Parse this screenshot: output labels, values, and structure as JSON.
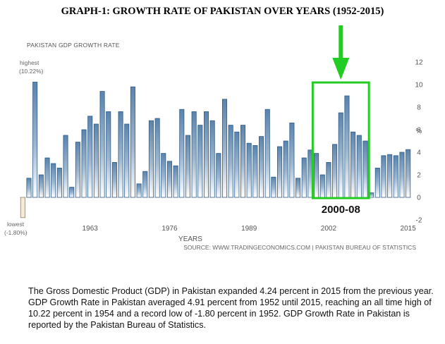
{
  "page": {
    "title": "GRAPH-1: GROWTH RATE OF PAKISTAN OVER YEARS (1952-2015)",
    "caption": "The Gross Domestic Product (GDP) in Pakistan expanded 4.24 percent in 2015 from the previous year. GDP Growth Rate in Pakistan averaged 4.91 percent from 1952 until 2015, reaching an all time high of 10.22 percent in 1954 and a record low of -1.80 percent in 1952. GDP Growth Rate in Pakistan is reported by the Pakistan Bureau of Statistics."
  },
  "chart_data": {
    "type": "bar",
    "title": "PAKISTAN GDP GROWTH RATE",
    "xlabel": "YEARS",
    "ylabel": "%",
    "source": "SOURCE: WWW.TRADINGECONOMICS.COM | PAKISTAN BUREAU OF STATISTICS",
    "ylim": [
      -2,
      12
    ],
    "yticks": [
      -2,
      0,
      2,
      4,
      6,
      8,
      10,
      12
    ],
    "xticks": [
      "1963",
      "1976",
      "1989",
      "2002",
      "2015"
    ],
    "annotations": {
      "highest": {
        "label": "highest",
        "value_label": "(10.22%)"
      },
      "lowest": {
        "label": "lowest",
        "value_label": "(-1.80%)"
      },
      "highlight": {
        "label": "2000-08",
        "from": 2000,
        "to": 2008,
        "color": "#22cc22"
      }
    },
    "colors": {
      "bar_top": "#5a84ad",
      "bar_bottom": "#ffffff",
      "bar_edge": "#2f5b86",
      "negative_fill": "#f6ead6",
      "negative_edge": "#9a7f5a"
    },
    "x": [
      1952,
      1953,
      1954,
      1955,
      1956,
      1957,
      1958,
      1959,
      1960,
      1961,
      1962,
      1963,
      1964,
      1965,
      1966,
      1967,
      1968,
      1969,
      1970,
      1971,
      1972,
      1973,
      1974,
      1975,
      1976,
      1977,
      1978,
      1979,
      1980,
      1981,
      1982,
      1983,
      1984,
      1985,
      1986,
      1987,
      1988,
      1989,
      1990,
      1991,
      1992,
      1993,
      1994,
      1995,
      1996,
      1997,
      1998,
      1999,
      2000,
      2001,
      2002,
      2003,
      2004,
      2005,
      2006,
      2007,
      2008,
      2009,
      2010,
      2011,
      2012,
      2013,
      2014,
      2015
    ],
    "values": [
      -1.8,
      1.7,
      10.22,
      2.0,
      3.5,
      3.0,
      2.6,
      5.5,
      0.9,
      4.9,
      6.0,
      7.2,
      6.5,
      9.4,
      7.6,
      3.1,
      7.6,
      6.5,
      9.8,
      1.2,
      2.3,
      6.8,
      7.0,
      3.9,
      3.2,
      2.8,
      7.8,
      5.5,
      7.6,
      6.4,
      7.6,
      6.8,
      3.9,
      8.7,
      6.4,
      5.8,
      6.4,
      4.8,
      4.6,
      5.4,
      7.8,
      1.8,
      4.5,
      5.0,
      6.6,
      1.7,
      3.5,
      4.2,
      3.9,
      2.0,
      3.1,
      4.7,
      7.5,
      9.0,
      5.8,
      5.5,
      5.0,
      0.4,
      2.6,
      3.7,
      3.8,
      3.7,
      4.0,
      4.24
    ]
  }
}
